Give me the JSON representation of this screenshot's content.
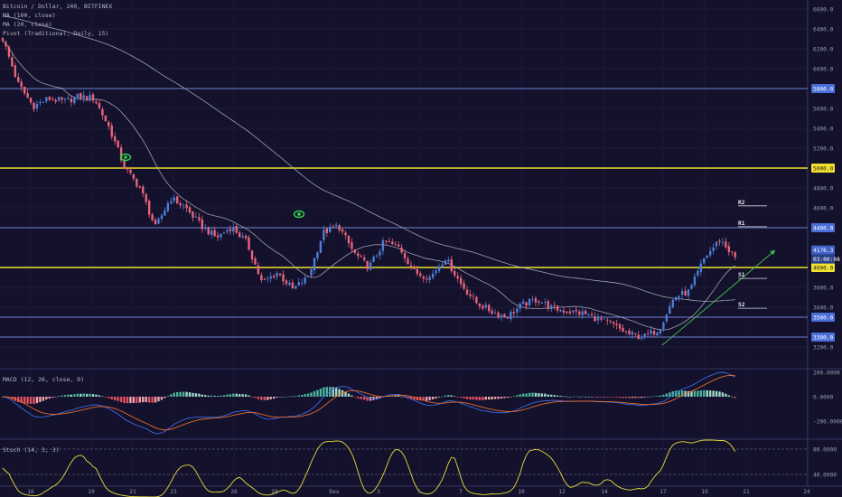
{
  "header": {
    "symbol": "Bitcoin / Dollar, 240, BITFINEX",
    "ma100": "MA (100, close)",
    "ma20": "MA (20, close)",
    "pivot": "Pivot (Traditional, Daily, 15)"
  },
  "colors": {
    "background": "#13112c",
    "up": "#4f7ed6",
    "down": "#e9647a",
    "ma": "#b8b8c8",
    "level_yellow": "#f2e22f",
    "level_blue": "#6d84cf",
    "trendline": "#3fbf4f",
    "signal_icon": "#33d04b",
    "macd_line": "#3c6ae0",
    "signal_line": "#e46c2c",
    "hist_up": "#4bb59a",
    "hist_up_light": "#9fd9c8",
    "hist_down": "#e35060",
    "hist_down_light": "#f0a6b0",
    "stoch": "#e8de38"
  },
  "chart_data": [
    {
      "type": "candlestick",
      "title": "Bitcoin / Dollar, 240, BITFINEX",
      "ylim": [
        3050,
        6650
      ],
      "y_ticks": [
        "6600.0",
        "6400.0",
        "6200.0",
        "6000.0",
        "5600.0",
        "5400.0",
        "5200.0",
        "4800.0",
        "4600.0",
        "3800.0",
        "3600.0",
        "3200.0"
      ],
      "x_ticks": [
        "16",
        "19",
        "21",
        "23",
        "26",
        "28",
        "Des",
        "3",
        "5",
        "7",
        "10",
        "12",
        "14",
        "17",
        "19",
        "21",
        "24"
      ],
      "price_levels": [
        {
          "value": 5800,
          "label": "5800.0",
          "style": "blue"
        },
        {
          "value": 5000,
          "label": "5000.0",
          "style": "yellow"
        },
        {
          "value": 4400,
          "label": "4400.0",
          "style": "blue"
        },
        {
          "value": 4000,
          "label": "4000.0",
          "style": "yellow"
        },
        {
          "value": 3500,
          "label": "3500.0",
          "style": "blue"
        },
        {
          "value": 3300,
          "label": "3300.0",
          "style": "blue"
        }
      ],
      "last_price": {
        "label": "4176.3",
        "timer": "03:00:08"
      },
      "pivots": [
        {
          "name": "R2",
          "value": 4620
        },
        {
          "name": "R1",
          "value": 4410
        },
        {
          "name": "S1",
          "value": 3890
        },
        {
          "name": "S2",
          "value": 3590
        }
      ],
      "anchors": [
        6300,
        5850,
        5620,
        5700,
        5670,
        5720,
        5700,
        5400,
        5000,
        4800,
        4400,
        4700,
        4600,
        4420,
        4300,
        4410,
        4250,
        3840,
        3950,
        3780,
        3900,
        4350,
        4420,
        4150,
        4000,
        4260,
        4200,
        3950,
        3900,
        4100,
        3840,
        3650,
        3560,
        3500,
        3620,
        3680,
        3590,
        3560,
        3540,
        3480,
        3420,
        3330,
        3300,
        3380,
        3700,
        3760,
        4100,
        4280,
        4100
      ]
    },
    {
      "type": "macd",
      "title": "MACD (12, 26, close, 9)",
      "ylim": [
        -300,
        250
      ],
      "y_ticks": [
        "200.0000",
        "0.0000",
        "-200.0000"
      ]
    },
    {
      "type": "stochastic",
      "title": "Stoch (14, 3, 3)",
      "ylim": [
        0,
        100
      ],
      "y_ticks": [
        "80.0000",
        "40.0000"
      ]
    }
  ]
}
